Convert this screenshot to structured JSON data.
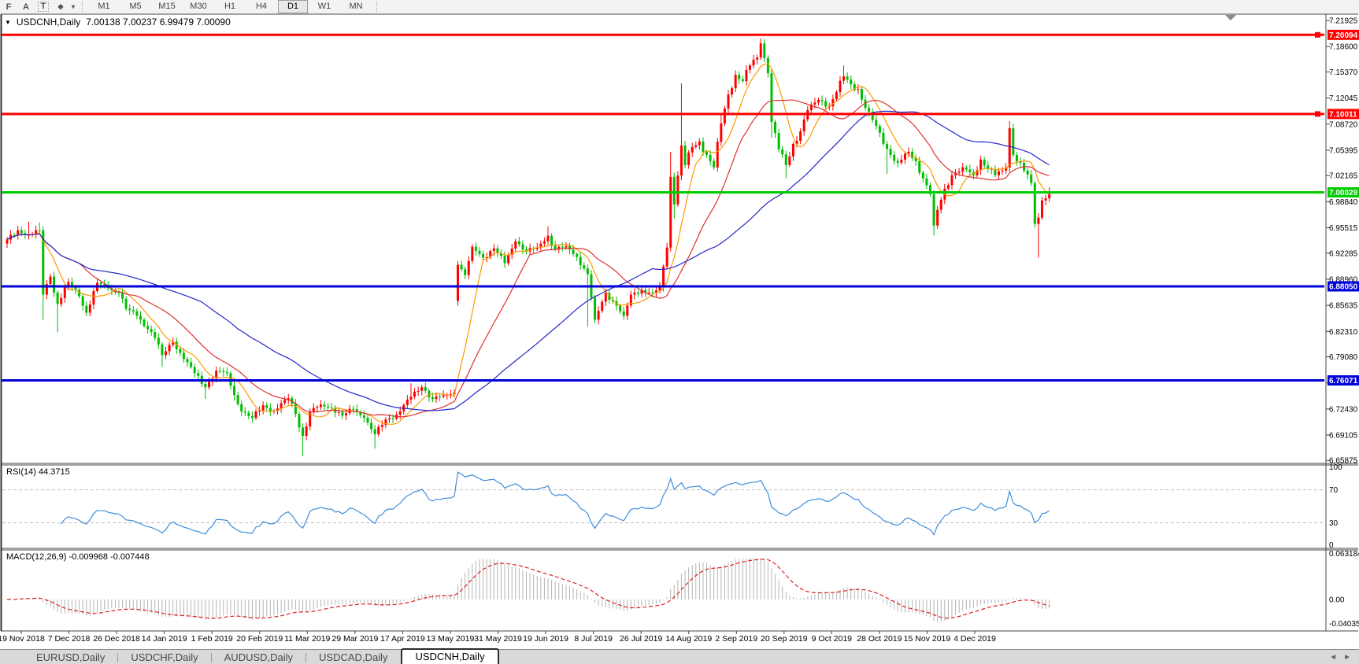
{
  "toolbar": {
    "icons": [
      {
        "name": "indicator-functions-icon",
        "glyph": "F"
      },
      {
        "name": "text-annotation-icon",
        "glyph": "A"
      },
      {
        "name": "text-label-icon",
        "glyph": "T"
      },
      {
        "name": "drawing-tools-icon",
        "glyph": "◆"
      },
      {
        "name": "dropdown-caret-icon",
        "glyph": "▾"
      }
    ],
    "timeframes": [
      {
        "label": "M1",
        "active": false
      },
      {
        "label": "M5",
        "active": false
      },
      {
        "label": "M15",
        "active": false
      },
      {
        "label": "M30",
        "active": false
      },
      {
        "label": "H1",
        "active": false
      },
      {
        "label": "H4",
        "active": false
      },
      {
        "label": "D1",
        "active": true
      },
      {
        "label": "W1",
        "active": false
      },
      {
        "label": "MN",
        "active": false
      }
    ]
  },
  "chart_data": {
    "type": "candlestick",
    "symbol": "USDCNH",
    "period": "Daily",
    "title_caret": "▼",
    "title": "USDCNH,Daily",
    "quote_line": "7.00138 7.00237 6.99479 7.00090",
    "quote": {
      "open": 7.00138,
      "high": 7.00237,
      "low": 6.99479,
      "close": 7.0009
    },
    "colors": {
      "up_candle": "#FF0000",
      "down_candle": "#00BE00",
      "ma_fast": "#FF9900",
      "ma_mid": "#E03030",
      "ma_slow": "#2328C8",
      "rsi": "#3F8EDB",
      "rsi_level": "#BFBFBF",
      "macd_hist": "#B4B4B4",
      "macd_signal": "#E02020",
      "level_red": "#FF0000",
      "level_green": "#00CC00",
      "level_blue": "#0000D8"
    },
    "price_axis": {
      "ticks": [
        "7.21925",
        "7.18600",
        "7.15370",
        "7.12045",
        "7.08720",
        "7.05395",
        "7.02165",
        "6.98840",
        "6.95515",
        "6.92285",
        "6.88960",
        "6.85635",
        "6.82310",
        "6.79080",
        "6.75755",
        "6.72430",
        "6.69105",
        "6.65875"
      ]
    },
    "horizontal_levels": [
      {
        "price": 7.20094,
        "label": "7.20094",
        "color": "#FF0000",
        "marker": true
      },
      {
        "price": 7.10011,
        "label": "7.10011",
        "color": "#FF0000",
        "marker": true
      },
      {
        "price": 7.00029,
        "label": "7.00029",
        "color": "#00CC00",
        "marker": false
      },
      {
        "price": 6.8805,
        "label": "6.88050",
        "color": "#0000D8",
        "marker": false
      },
      {
        "price": 6.76071,
        "label": "6.76071",
        "color": "#0000D8",
        "marker": false
      }
    ],
    "date_ticks": [
      "19 Nov 2018",
      "7 Dec 2018",
      "26 Dec 2018",
      "14 Jan 2019",
      "1 Feb 2019",
      "20 Feb 2019",
      "11 Mar 2019",
      "29 Mar 2019",
      "17 Apr 2019",
      "13 May 2019",
      "31 May 2019",
      "19 Jun 2019",
      "8 Jul 2019",
      "26 Jul 2019",
      "14 Aug 2019",
      "2 Sep 2019",
      "20 Sep 2019",
      "9 Oct 2019",
      "28 Oct 2019",
      "15 Nov 2019",
      "4 Dec 2019"
    ],
    "candles": {
      "count": 290,
      "close_waypoints": [
        [
          0,
          6.94
        ],
        [
          3,
          6.952
        ],
        [
          6,
          6.946
        ],
        [
          9,
          6.952
        ],
        [
          10,
          6.87
        ],
        [
          12,
          6.893
        ],
        [
          14,
          6.858
        ],
        [
          17,
          6.886
        ],
        [
          20,
          6.868
        ],
        [
          22,
          6.847
        ],
        [
          25,
          6.885
        ],
        [
          28,
          6.878
        ],
        [
          31,
          6.872
        ],
        [
          33,
          6.852
        ],
        [
          36,
          6.843
        ],
        [
          39,
          6.826
        ],
        [
          41,
          6.815
        ],
        [
          43,
          6.793
        ],
        [
          46,
          6.81
        ],
        [
          49,
          6.788
        ],
        [
          52,
          6.77
        ],
        [
          55,
          6.752
        ],
        [
          58,
          6.773
        ],
        [
          61,
          6.77
        ],
        [
          63,
          6.742
        ],
        [
          65,
          6.721
        ],
        [
          68,
          6.713
        ],
        [
          71,
          6.729
        ],
        [
          74,
          6.722
        ],
        [
          78,
          6.738
        ],
        [
          80,
          6.718
        ],
        [
          82,
          6.69
        ],
        [
          84,
          6.721
        ],
        [
          87,
          6.73
        ],
        [
          90,
          6.726
        ],
        [
          93,
          6.716
        ],
        [
          96,
          6.724
        ],
        [
          99,
          6.713
        ],
        [
          102,
          6.692
        ],
        [
          105,
          6.711
        ],
        [
          108,
          6.717
        ],
        [
          112,
          6.74
        ],
        [
          115,
          6.752
        ],
        [
          118,
          6.737
        ],
        [
          121,
          6.742
        ],
        [
          124,
          6.745
        ],
        [
          125,
          6.908
        ],
        [
          127,
          6.895
        ],
        [
          129,
          6.931
        ],
        [
          132,
          6.917
        ],
        [
          135,
          6.929
        ],
        [
          138,
          6.91
        ],
        [
          141,
          6.938
        ],
        [
          144,
          6.925
        ],
        [
          147,
          6.93
        ],
        [
          150,
          6.945
        ],
        [
          152,
          6.928
        ],
        [
          155,
          6.932
        ],
        [
          158,
          6.918
        ],
        [
          161,
          6.896
        ],
        [
          163,
          6.838
        ],
        [
          166,
          6.872
        ],
        [
          169,
          6.856
        ],
        [
          171,
          6.843
        ],
        [
          173,
          6.87
        ],
        [
          176,
          6.876
        ],
        [
          179,
          6.872
        ],
        [
          181,
          6.88
        ],
        [
          183,
          6.93
        ],
        [
          184,
          7.02
        ],
        [
          185,
          6.985
        ],
        [
          187,
          7.06
        ],
        [
          188,
          7.035
        ],
        [
          190,
          7.058
        ],
        [
          192,
          7.065
        ],
        [
          194,
          7.048
        ],
        [
          196,
          7.032
        ],
        [
          198,
          7.088
        ],
        [
          200,
          7.125
        ],
        [
          202,
          7.15
        ],
        [
          204,
          7.142
        ],
        [
          206,
          7.162
        ],
        [
          208,
          7.172
        ],
        [
          209,
          7.19
        ],
        [
          211,
          7.152
        ],
        [
          212,
          7.09
        ],
        [
          214,
          7.055
        ],
        [
          216,
          7.035
        ],
        [
          218,
          7.062
        ],
        [
          220,
          7.078
        ],
        [
          222,
          7.105
        ],
        [
          225,
          7.118
        ],
        [
          228,
          7.11
        ],
        [
          230,
          7.128
        ],
        [
          232,
          7.148
        ],
        [
          234,
          7.138
        ],
        [
          236,
          7.132
        ],
        [
          238,
          7.108
        ],
        [
          241,
          7.085
        ],
        [
          243,
          7.062
        ],
        [
          245,
          7.048
        ],
        [
          247,
          7.038
        ],
        [
          250,
          7.052
        ],
        [
          252,
          7.04
        ],
        [
          254,
          7.018
        ],
        [
          256,
          6.998
        ],
        [
          257,
          6.958
        ],
        [
          258,
          6.978
        ],
        [
          260,
          7.005
        ],
        [
          262,
          7.022
        ],
        [
          265,
          7.032
        ],
        [
          268,
          7.022
        ],
        [
          270,
          7.042
        ],
        [
          272,
          7.03
        ],
        [
          274,
          7.022
        ],
        [
          276,
          7.028
        ],
        [
          277,
          7.032
        ],
        [
          278,
          7.082
        ],
        [
          279,
          7.048
        ],
        [
          281,
          7.038
        ],
        [
          282,
          7.028
        ],
        [
          284,
          7.012
        ],
        [
          285,
          6.96
        ],
        [
          286,
          6.968
        ],
        [
          287,
          6.99
        ],
        [
          289,
          7.001
        ]
      ],
      "open_overrides": [
        [
          125,
          6.862
        ]
      ],
      "wick_spikes": [
        [
          6,
          "high",
          6.963
        ],
        [
          9,
          "high",
          6.962
        ],
        [
          10,
          "low",
          6.838
        ],
        [
          14,
          "low",
          6.822
        ],
        [
          43,
          "low",
          6.778
        ],
        [
          55,
          "low",
          6.737
        ],
        [
          63,
          "low",
          6.735
        ],
        [
          82,
          "low",
          6.664
        ],
        [
          102,
          "low",
          6.674
        ],
        [
          112,
          "high",
          6.757
        ],
        [
          125,
          "low",
          6.856
        ],
        [
          150,
          "high",
          6.957
        ],
        [
          161,
          "low",
          6.829
        ],
        [
          184,
          "high",
          7.052
        ],
        [
          185,
          "low",
          6.967
        ],
        [
          187,
          "high",
          7.139
        ],
        [
          198,
          "high",
          7.1
        ],
        [
          209,
          "high",
          7.1965
        ],
        [
          212,
          "low",
          7.07
        ],
        [
          216,
          "low",
          7.018
        ],
        [
          232,
          "high",
          7.162
        ],
        [
          244,
          "low",
          7.024
        ],
        [
          257,
          "low",
          6.9455
        ],
        [
          278,
          "high",
          7.091
        ],
        [
          286,
          "low",
          6.917
        ]
      ]
    },
    "moving_averages": [
      {
        "period": 8,
        "color_key": "ma_fast"
      },
      {
        "period": 21,
        "color_key": "ma_mid"
      },
      {
        "period": 55,
        "color_key": "ma_slow"
      }
    ],
    "rsi": {
      "label": "RSI(14) 44.3715",
      "period": 14,
      "current": 44.3715,
      "levels": [
        70,
        30
      ],
      "axis_labels": [
        "100",
        "70",
        "30",
        "0"
      ]
    },
    "macd": {
      "label": "MACD(12,26,9) -0.009968 -0.007448",
      "fast": 12,
      "slow": 26,
      "signal": 9,
      "current": [
        -0.009968,
        -0.007448
      ],
      "axis_labels": [
        "0.063184",
        "0.00",
        "-0.040355"
      ]
    }
  },
  "tabs": [
    {
      "label": "EURUSD,Daily",
      "active": false
    },
    {
      "label": "USDCHF,Daily",
      "active": false
    },
    {
      "label": "AUDUSD,Daily",
      "active": false
    },
    {
      "label": "USDCAD,Daily",
      "active": false
    },
    {
      "label": "USDCNH,Daily",
      "active": true
    }
  ],
  "tab_scroll": {
    "left": "◄",
    "right": "►"
  }
}
